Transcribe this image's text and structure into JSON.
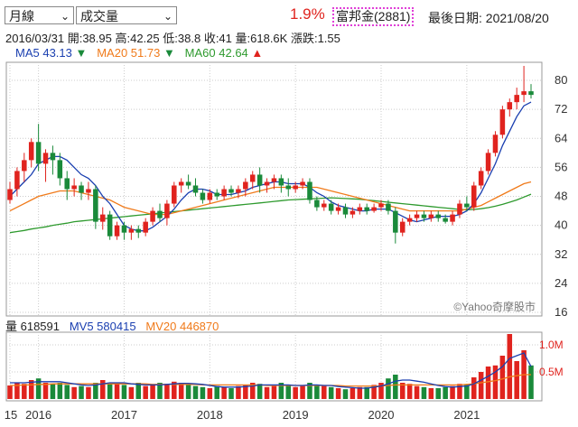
{
  "controls": {
    "period": "月線",
    "indicator": "成交量"
  },
  "header": {
    "change_pct": "1.9%",
    "stock": "富邦金(2881)",
    "last_date": "最後日期: 2021/08/20"
  },
  "info": {
    "date": "2016/03/31",
    "open": "開:38.95",
    "high": "高:42.25",
    "low": "低:38.8",
    "close": "收:41",
    "volume": "量:618.6K",
    "change": "漲跌:1.55"
  },
  "ma_legend": {
    "ma5": "MA5 43.13",
    "ma5_dir": "▼",
    "ma20": "MA20 51.73",
    "ma20_dir": "▼",
    "ma60": "MA60 42.64",
    "ma60_dir": "▲"
  },
  "vol_legend": {
    "vol": "量 618591",
    "mv5": "MV5 580415",
    "mv20": "MV20 446870"
  },
  "watermark": "©Yahoo奇摩股市",
  "colors": {
    "up": "#e0231e",
    "down": "#1a8a3a",
    "ma5": "#1a3fb0",
    "ma20": "#f07a1a",
    "ma60": "#2e9a2e",
    "stock_box": "#e040d8"
  },
  "chart_data": [
    {
      "type": "candlestick",
      "ylim": [
        16,
        84
      ],
      "y_ticks": [
        80,
        72,
        64,
        56,
        48,
        40,
        32,
        24,
        16
      ],
      "x_tick_labels": [
        "15",
        "2016",
        "2017",
        "2018",
        "2019",
        "2020",
        "2021"
      ],
      "x_tick_months": [
        0,
        4,
        16,
        28,
        40,
        52,
        64
      ],
      "grid": true,
      "start_month": "2015-08",
      "ohlc": [
        [
          47,
          52,
          46,
          50
        ],
        [
          50,
          56,
          48,
          55
        ],
        [
          55,
          60,
          52,
          58
        ],
        [
          58,
          64,
          56,
          63
        ],
        [
          63,
          68,
          55,
          57
        ],
        [
          57,
          61,
          52,
          60
        ],
        [
          60,
          62,
          54,
          58
        ],
        [
          58,
          60,
          51,
          53
        ],
        [
          53,
          55,
          47,
          50
        ],
        [
          50,
          53,
          48,
          51
        ],
        [
          51,
          52,
          47,
          49
        ],
        [
          49,
          52,
          47,
          50
        ],
        [
          50,
          51,
          39,
          41
        ],
        [
          41,
          45,
          38.8,
          43
        ],
        [
          43,
          44,
          36,
          37
        ],
        [
          37,
          41,
          36,
          40
        ],
        [
          40,
          41,
          36,
          38
        ],
        [
          38,
          40,
          36,
          39
        ],
        [
          39,
          40,
          36.5,
          38
        ],
        [
          38,
          42,
          37,
          41
        ],
        [
          41,
          45,
          40,
          44
        ],
        [
          44,
          46,
          41,
          42
        ],
        [
          42,
          47,
          40,
          46
        ],
        [
          46,
          52,
          45,
          51
        ],
        [
          51,
          53,
          49,
          52
        ],
        [
          52,
          54,
          50,
          51
        ],
        [
          51,
          53,
          48,
          49
        ],
        [
          49,
          50,
          46,
          47
        ],
        [
          47,
          50,
          46,
          49
        ],
        [
          49,
          50,
          47,
          48
        ],
        [
          48,
          51,
          47,
          50
        ],
        [
          50,
          51,
          48,
          49
        ],
        [
          49,
          51,
          47.5,
          50
        ],
        [
          50,
          53,
          48,
          52
        ],
        [
          52,
          55,
          50,
          54
        ],
        [
          54,
          56,
          49,
          51
        ],
        [
          51,
          53,
          49,
          52
        ],
        [
          52,
          54,
          50,
          53
        ],
        [
          53,
          54,
          49,
          51
        ],
        [
          51,
          53,
          48,
          50
        ],
        [
          50,
          52,
          49,
          51
        ],
        [
          51,
          53,
          50,
          52
        ],
        [
          52,
          53,
          46,
          47
        ],
        [
          47,
          48,
          44,
          45
        ],
        [
          45,
          47,
          44,
          46
        ],
        [
          46,
          47,
          43,
          44
        ],
        [
          44,
          46,
          43,
          45
        ],
        [
          45,
          46,
          42,
          43
        ],
        [
          43,
          45,
          42,
          44
        ],
        [
          44,
          46,
          43,
          45
        ],
        [
          45,
          46,
          43,
          44
        ],
        [
          44,
          46,
          43.5,
          45
        ],
        [
          45,
          47,
          44,
          46
        ],
        [
          46,
          47,
          43,
          44
        ],
        [
          44,
          45,
          35,
          38
        ],
        [
          38,
          42,
          37,
          41
        ],
        [
          41,
          43,
          40,
          42
        ],
        [
          42,
          44,
          41,
          43
        ],
        [
          43,
          44,
          41,
          42
        ],
        [
          42,
          44,
          41,
          43
        ],
        [
          43,
          44,
          41,
          42
        ],
        [
          42,
          43,
          40.5,
          41
        ],
        [
          41,
          44,
          40,
          43
        ],
        [
          43,
          47,
          42,
          46
        ],
        [
          46,
          48,
          44,
          45
        ],
        [
          45,
          52,
          44,
          51
        ],
        [
          51,
          56,
          50,
          55
        ],
        [
          55,
          61,
          54,
          60
        ],
        [
          60,
          66,
          59,
          65
        ],
        [
          65,
          73,
          64,
          72
        ],
        [
          72,
          75,
          70,
          74
        ],
        [
          74,
          78,
          72,
          76
        ],
        [
          76,
          84,
          74,
          77
        ],
        [
          77,
          79,
          75,
          76
        ]
      ],
      "ma5": [
        48,
        50,
        52,
        54,
        57,
        58,
        59,
        59,
        58,
        56,
        54,
        53,
        51,
        48,
        46,
        43,
        40,
        39,
        38.5,
        38.5,
        39.5,
        41,
        42.5,
        44.5,
        47,
        49,
        50,
        50,
        49.5,
        48.5,
        48.5,
        48.5,
        49,
        49.5,
        50.5,
        51,
        51.5,
        52,
        52,
        51.5,
        51.5,
        51.5,
        50.5,
        49,
        48,
        46.5,
        45.5,
        45,
        44.5,
        44,
        44,
        44.5,
        44.5,
        44.5,
        43.5,
        42.5,
        41.5,
        41,
        41.5,
        42,
        42.5,
        42.5,
        42.5,
        43,
        44,
        46,
        49,
        53,
        57,
        62,
        66,
        70,
        73,
        74
      ],
      "ma20": [
        44,
        45,
        46,
        47,
        48,
        48.5,
        49,
        49.5,
        49.5,
        49.5,
        49,
        48.5,
        48,
        47.5,
        47,
        46,
        45,
        44.5,
        44,
        43.5,
        43,
        43,
        43,
        43.5,
        44,
        44.5,
        45,
        45.5,
        46,
        46.5,
        47,
        47.5,
        48,
        48.5,
        49,
        49.5,
        50,
        50.5,
        50.5,
        50.5,
        50.5,
        50.5,
        50.5,
        50.5,
        50,
        49.5,
        49,
        48.5,
        48,
        47.5,
        47,
        46.5,
        46,
        45.5,
        45,
        44.5,
        44,
        44,
        44,
        44,
        44,
        44,
        44,
        44,
        44.5,
        45,
        45.5,
        46.5,
        47.5,
        48.5,
        49.5,
        50.5,
        51.5,
        52
      ],
      "ma60": [
        38,
        38.3,
        38.6,
        39,
        39.3,
        39.6,
        40,
        40.3,
        40.6,
        41,
        41.2,
        41.4,
        41.6,
        41.8,
        42,
        42.2,
        42.4,
        42.6,
        42.8,
        43,
        43.2,
        43.4,
        43.6,
        43.8,
        44,
        44.2,
        44.4,
        44.6,
        44.8,
        45,
        45.2,
        45.4,
        45.6,
        45.8,
        46,
        46.2,
        46.4,
        46.6,
        46.8,
        47,
        47.1,
        47.2,
        47.3,
        47.4,
        47.5,
        47.6,
        47.5,
        47.4,
        47.3,
        47.2,
        47,
        46.8,
        46.6,
        46.4,
        46.2,
        46,
        45.8,
        45.6,
        45.4,
        45.2,
        45,
        44.8,
        44.6,
        44.4,
        44.3,
        44.4,
        44.6,
        44.9,
        45.3,
        45.8,
        46.4,
        47,
        47.8,
        48.6
      ]
    },
    {
      "type": "bar",
      "title": "volume",
      "ylim": [
        0,
        1.2
      ],
      "y_ticks": [
        1.0,
        0.5
      ],
      "y_tick_labels": [
        "1.0M",
        "0.5M"
      ],
      "volume_m": [
        0.25,
        0.3,
        0.28,
        0.35,
        0.38,
        0.3,
        0.28,
        0.3,
        0.26,
        0.22,
        0.24,
        0.22,
        0.3,
        0.35,
        0.3,
        0.28,
        0.26,
        0.22,
        0.3,
        0.24,
        0.26,
        0.3,
        0.28,
        0.32,
        0.3,
        0.26,
        0.24,
        0.22,
        0.2,
        0.24,
        0.22,
        0.2,
        0.24,
        0.26,
        0.3,
        0.28,
        0.22,
        0.24,
        0.3,
        0.26,
        0.22,
        0.24,
        0.3,
        0.26,
        0.24,
        0.22,
        0.2,
        0.18,
        0.2,
        0.22,
        0.22,
        0.26,
        0.3,
        0.38,
        0.45,
        0.3,
        0.28,
        0.24,
        0.22,
        0.2,
        0.2,
        0.22,
        0.24,
        0.28,
        0.26,
        0.4,
        0.5,
        0.6,
        0.62,
        0.8,
        1.2,
        0.7,
        0.9,
        0.62
      ],
      "mv5_m": [
        0.3,
        0.3,
        0.3,
        0.31,
        0.32,
        0.32,
        0.32,
        0.32,
        0.3,
        0.28,
        0.26,
        0.25,
        0.26,
        0.28,
        0.3,
        0.3,
        0.3,
        0.28,
        0.27,
        0.26,
        0.26,
        0.26,
        0.27,
        0.28,
        0.29,
        0.29,
        0.28,
        0.27,
        0.25,
        0.23,
        0.22,
        0.22,
        0.22,
        0.23,
        0.24,
        0.26,
        0.26,
        0.26,
        0.26,
        0.26,
        0.25,
        0.25,
        0.26,
        0.26,
        0.25,
        0.25,
        0.23,
        0.22,
        0.21,
        0.2,
        0.2,
        0.22,
        0.24,
        0.28,
        0.33,
        0.35,
        0.35,
        0.33,
        0.31,
        0.28,
        0.25,
        0.23,
        0.22,
        0.23,
        0.24,
        0.28,
        0.35,
        0.42,
        0.5,
        0.6,
        0.75,
        0.8,
        0.85,
        0.6
      ],
      "mv20_m": [
        0.25,
        0.25,
        0.26,
        0.26,
        0.27,
        0.27,
        0.28,
        0.28,
        0.28,
        0.28,
        0.28,
        0.28,
        0.28,
        0.28,
        0.28,
        0.28,
        0.28,
        0.28,
        0.28,
        0.28,
        0.27,
        0.27,
        0.27,
        0.27,
        0.27,
        0.27,
        0.27,
        0.26,
        0.26,
        0.26,
        0.26,
        0.26,
        0.26,
        0.26,
        0.26,
        0.26,
        0.25,
        0.25,
        0.25,
        0.25,
        0.25,
        0.25,
        0.25,
        0.25,
        0.25,
        0.25,
        0.25,
        0.24,
        0.24,
        0.24,
        0.24,
        0.24,
        0.24,
        0.25,
        0.26,
        0.26,
        0.26,
        0.26,
        0.26,
        0.26,
        0.26,
        0.26,
        0.26,
        0.26,
        0.27,
        0.28,
        0.3,
        0.32,
        0.34,
        0.37,
        0.41,
        0.43,
        0.45,
        0.45
      ]
    }
  ]
}
